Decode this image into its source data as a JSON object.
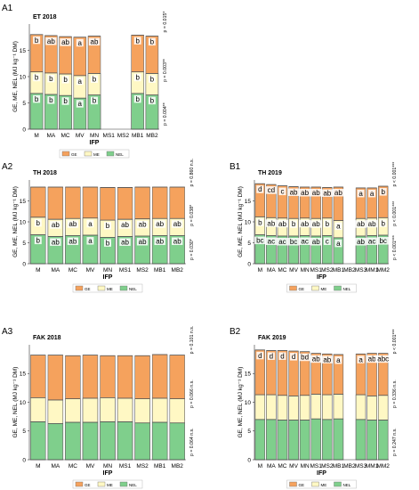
{
  "colors": {
    "GE": "#f5a25d",
    "ME": "#fff8c4",
    "NEL": "#7fcf8c",
    "outline": "#6b6b6b",
    "panel_label": "#000000"
  },
  "chart_data": [
    {
      "id": "A1",
      "type": "bar",
      "subtype": "stacked-overlap",
      "panel_label": "A1",
      "title": "ET 2018",
      "ylabel": "GE, ME, NEL (MJ kg⁻¹ DM)",
      "xlabel": "IFP",
      "ylim": [
        0,
        20
      ],
      "yticks": [
        0,
        5,
        10,
        15
      ],
      "categories": [
        "M",
        "MA",
        "MC",
        "MV",
        "MN",
        "MS1",
        "MS2",
        "MB1",
        "MB2"
      ],
      "series": [
        {
          "name": "GE",
          "values": [
            18.0,
            17.8,
            17.6,
            17.5,
            17.7,
            null,
            null,
            17.9,
            17.7
          ]
        },
        {
          "name": "ME",
          "values": [
            10.9,
            10.7,
            10.5,
            10.2,
            10.6,
            null,
            null,
            10.9,
            10.6
          ]
        },
        {
          "name": "NEL",
          "values": [
            6.8,
            6.6,
            6.4,
            5.9,
            6.5,
            null,
            null,
            6.8,
            6.5
          ]
        }
      ],
      "letters": {
        "GE": [
          "b",
          "ab",
          "ab",
          "a",
          "ab",
          "",
          "",
          "b",
          "b"
        ],
        "ME": [
          "b",
          "b",
          "b",
          "a",
          "b",
          "",
          "",
          "b",
          "b"
        ],
        "NEL": [
          "b",
          "b",
          "b",
          "a",
          "b",
          "",
          "",
          "b",
          "b"
        ]
      },
      "pvalues": [
        "p = 0.004**",
        "p = 0.003**",
        "p = 0.015*"
      ],
      "legend": [
        "GE",
        "ME",
        "NEL"
      ]
    },
    {
      "id": "A2",
      "type": "bar",
      "subtype": "stacked-overlap",
      "panel_label": "A2",
      "title": "TH 2018",
      "ylabel": "GE, ME, NEL (MJ kg⁻¹ DM)",
      "xlabel": "IFP",
      "ylim": [
        0,
        20
      ],
      "yticks": [
        0,
        5,
        10,
        15
      ],
      "categories": [
        "M",
        "MA",
        "MC",
        "MV",
        "MN",
        "MS1",
        "MS2",
        "MB1",
        "MB2"
      ],
      "series": [
        {
          "name": "GE",
          "values": [
            18.3,
            18.3,
            18.3,
            18.3,
            18.2,
            18.2,
            18.3,
            18.3,
            18.3
          ]
        },
        {
          "name": "ME",
          "values": [
            11.1,
            10.6,
            10.8,
            10.9,
            10.4,
            10.6,
            10.7,
            10.8,
            10.8
          ]
        },
        {
          "name": "NEL",
          "values": [
            6.9,
            6.5,
            6.7,
            6.8,
            6.3,
            6.5,
            6.6,
            6.7,
            6.7
          ]
        }
      ],
      "letters": {
        "GE": [
          "",
          "",
          "",
          "",
          "",
          "",
          "",
          "",
          ""
        ],
        "ME": [
          "b",
          "ab",
          "ab",
          "a",
          "b",
          "ab",
          "ab",
          "ab",
          "ab"
        ],
        "NEL": [
          "b",
          "ab",
          "ab",
          "a",
          "b",
          "ab",
          "ab",
          "ab",
          "ab"
        ]
      },
      "pvalues": [
        "p = 0.030*",
        "p = 0.038*",
        "p = 0.860 n.s."
      ],
      "legend": [
        "GE",
        "ME",
        "NEL"
      ]
    },
    {
      "id": "A3",
      "type": "bar",
      "subtype": "stacked-overlap",
      "panel_label": "A3",
      "title": "FAK 2018",
      "ylabel": "GE, ME, NEL (MJ kg⁻¹ DM)",
      "xlabel": "IFP",
      "ylim": [
        0,
        20
      ],
      "yticks": [
        0,
        5,
        10,
        15
      ],
      "categories": [
        "M",
        "MA",
        "MC",
        "MV",
        "MN",
        "MS1",
        "MS2",
        "MB1",
        "MB2"
      ],
      "series": [
        {
          "name": "GE",
          "values": [
            18.2,
            18.2,
            18.1,
            18.2,
            18.1,
            18.1,
            18.1,
            18.3,
            18.2
          ]
        },
        {
          "name": "ME",
          "values": [
            10.8,
            10.4,
            10.6,
            10.7,
            10.8,
            10.7,
            10.6,
            10.7,
            10.6
          ]
        },
        {
          "name": "NEL",
          "values": [
            6.6,
            6.3,
            6.5,
            6.5,
            6.6,
            6.6,
            6.4,
            6.5,
            6.4
          ]
        }
      ],
      "letters": {
        "GE": [
          "",
          "",
          "",
          "",
          "",
          "",
          "",
          "",
          ""
        ],
        "ME": [
          "",
          "",
          "",
          "",
          "",
          "",
          "",
          "",
          ""
        ],
        "NEL": [
          "",
          "",
          "",
          "",
          "",
          "",
          "",
          "",
          ""
        ]
      },
      "pvalues": [
        "p = 0.064 n.s.",
        "p = 0.066 n.s.",
        "p = 0.101 n.s."
      ],
      "legend": [
        "GE",
        "ME",
        "NEL"
      ]
    },
    {
      "id": "B1",
      "type": "bar",
      "subtype": "stacked-overlap",
      "panel_label": "B1",
      "title": "TH 2019",
      "ylabel": "GE, ME, NEL (MJ kg⁻¹ DM)",
      "xlabel": "IFP",
      "ylim": [
        0,
        20
      ],
      "yticks": [
        0,
        5,
        10,
        15
      ],
      "categories": [
        "M",
        "MA",
        "MC",
        "MV",
        "MN",
        "MS1",
        "MS2",
        "MB1",
        "MB2",
        "MS3",
        "MM1",
        "MM2"
      ],
      "series": [
        {
          "name": "GE",
          "values": [
            19.1,
            18.9,
            18.6,
            18.4,
            18.3,
            18.3,
            18.2,
            18.3,
            null,
            18.1,
            18.1,
            18.5
          ]
        },
        {
          "name": "ME",
          "values": [
            11.2,
            11.0,
            10.9,
            10.8,
            10.9,
            10.8,
            10.9,
            10.3,
            null,
            10.8,
            10.9,
            11.0
          ]
        },
        {
          "name": "NEL",
          "values": [
            6.9,
            6.7,
            6.6,
            6.6,
            6.7,
            6.6,
            6.7,
            6.2,
            null,
            6.6,
            6.7,
            6.8
          ]
        }
      ],
      "letters": {
        "GE": [
          "d",
          "cd",
          "c",
          "ab",
          "ab",
          "ab",
          "ab",
          "ab",
          "",
          "a",
          "a",
          "b"
        ],
        "ME": [
          "b",
          "ab",
          "ab",
          "b",
          "ab",
          "ab",
          "b",
          "a",
          "",
          "ab",
          "ab",
          "b"
        ],
        "NEL": [
          "bc",
          "ac",
          "ac",
          "bc",
          "ac",
          "ab",
          "c",
          "a",
          "",
          "ab",
          "ac",
          "bc"
        ]
      },
      "pvalues": [
        "p < 0.001***",
        "p < 0.001***",
        "p < 0.001***"
      ],
      "legend": [
        "GE",
        "ME",
        "NEL"
      ]
    },
    {
      "id": "B2",
      "type": "bar",
      "subtype": "stacked-overlap",
      "panel_label": "B2",
      "title": "FAK 2019",
      "ylabel": "GE, ME, NEL (MJ kg⁻¹ DM)",
      "xlabel": "IFP",
      "ylim": [
        0,
        20
      ],
      "yticks": [
        0,
        5,
        10,
        15
      ],
      "categories": [
        "M",
        "MA",
        "MC",
        "MV",
        "MN",
        "MS1",
        "MS2",
        "MB1",
        "MB2",
        "MS3",
        "MM1",
        "MM2"
      ],
      "series": [
        {
          "name": "GE",
          "values": [
            19.1,
            19.0,
            19.0,
            18.9,
            18.8,
            18.5,
            18.4,
            18.3,
            null,
            18.4,
            18.5,
            18.5
          ]
        },
        {
          "name": "ME",
          "values": [
            11.3,
            11.3,
            11.2,
            11.1,
            11.2,
            11.4,
            11.3,
            11.4,
            null,
            11.3,
            11.1,
            11.2
          ]
        },
        {
          "name": "NEL",
          "values": [
            7.0,
            7.0,
            6.9,
            6.9,
            6.9,
            7.1,
            7.0,
            7.1,
            null,
            7.0,
            6.9,
            6.9
          ]
        }
      ],
      "letters": {
        "GE": [
          "d",
          "d",
          "d",
          "d",
          "bd",
          "ab",
          "ab",
          "a",
          "",
          "a",
          "ab",
          "abc"
        ],
        "ME": [
          "",
          "",
          "",
          "",
          "",
          "",
          "",
          "",
          "",
          "",
          "",
          ""
        ],
        "NEL": [
          "",
          "",
          "",
          "",
          "",
          "",
          "",
          "",
          "",
          "",
          "",
          ""
        ]
      },
      "pvalues": [
        "p = 0.247 n.s.",
        "p = 0.336 n.s.",
        "p < 0.001***"
      ],
      "legend": [
        "GE",
        "ME",
        "NEL"
      ]
    }
  ]
}
